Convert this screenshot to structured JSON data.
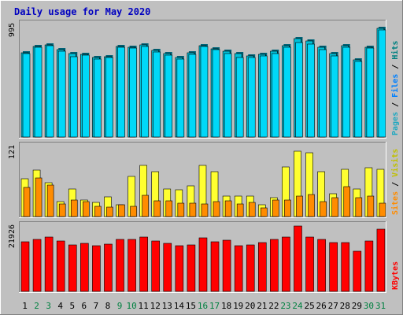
{
  "title": "Daily usage for May 2020",
  "colors": {
    "hits": "#00c0d8",
    "hits_dark": "#006478",
    "files": "#00d8f8",
    "pages": "#20a8c0",
    "visits": "#ffff30",
    "sites": "#ff8c00",
    "kbytes": "#ff0000",
    "title": "#0000c0",
    "weekend_day": "#008040",
    "weekday": "#000000"
  },
  "chart_data": [
    {
      "type": "bar",
      "panel": "top",
      "ymax_label": "995",
      "ylabels": [
        {
          "text": "Pages",
          "color": "#20a8c0"
        },
        {
          "text": " / ",
          "color": "#000000"
        },
        {
          "text": "Files",
          "color": "#0080ff"
        },
        {
          "text": " / ",
          "color": "#000000"
        },
        {
          "text": "Hits",
          "color": "#008080"
        }
      ],
      "ylim": [
        0,
        995
      ],
      "categories": [
        "1",
        "2",
        "3",
        "4",
        "5",
        "6",
        "7",
        "8",
        "9",
        "10",
        "11",
        "12",
        "13",
        "14",
        "15",
        "16",
        "17",
        "18",
        "19",
        "20",
        "21",
        "22",
        "23",
        "24",
        "25",
        "26",
        "27",
        "28",
        "29",
        "30",
        "31"
      ],
      "series": [
        {
          "name": "Hits",
          "values": [
            745,
            800,
            815,
            770,
            740,
            730,
            700,
            710,
            800,
            790,
            815,
            765,
            735,
            700,
            745,
            810,
            780,
            760,
            740,
            720,
            730,
            755,
            810,
            870,
            850,
            790,
            740,
            805,
            680,
            795,
            960
          ]
        },
        {
          "name": "Files",
          "values": [
            735,
            790,
            805,
            760,
            710,
            725,
            690,
            705,
            795,
            785,
            800,
            750,
            725,
            690,
            730,
            800,
            770,
            740,
            705,
            700,
            720,
            740,
            795,
            835,
            820,
            775,
            720,
            795,
            670,
            785,
            945
          ]
        }
      ]
    },
    {
      "type": "bar",
      "panel": "middle",
      "ymax_label": "121",
      "ylabels": [
        {
          "text": "Sites",
          "color": "#ff8c00"
        },
        {
          "text": " / ",
          "color": "#000000"
        },
        {
          "text": "Visits",
          "color": "#c0c000"
        }
      ],
      "ylim": [
        0,
        121
      ],
      "categories": [
        "1",
        "2",
        "3",
        "4",
        "5",
        "6",
        "7",
        "8",
        "9",
        "10",
        "11",
        "12",
        "13",
        "14",
        "15",
        "16",
        "17",
        "18",
        "19",
        "20",
        "21",
        "22",
        "23",
        "24",
        "25",
        "26",
        "27",
        "28",
        "29",
        "30",
        "31"
      ],
      "series": [
        {
          "name": "Visits",
          "values": [
            65,
            80,
            58,
            26,
            47,
            28,
            25,
            34,
            20,
            70,
            88,
            78,
            48,
            46,
            53,
            89,
            77,
            36,
            36,
            35,
            20,
            32,
            86,
            113,
            110,
            77,
            40,
            81,
            47,
            84,
            81
          ]
        },
        {
          "name": "Sites",
          "values": [
            50,
            67,
            54,
            22,
            28,
            26,
            18,
            16,
            21,
            17,
            37,
            27,
            27,
            23,
            23,
            22,
            26,
            27,
            22,
            25,
            15,
            28,
            28,
            36,
            38,
            26,
            32,
            52,
            32,
            36,
            23
          ]
        }
      ]
    },
    {
      "type": "bar",
      "panel": "bottom",
      "ymax_label": "21926",
      "ylabels": [
        {
          "text": "KBytes",
          "color": "#ff0000"
        }
      ],
      "ylim": [
        0,
        21926
      ],
      "categories": [
        "1",
        "2",
        "3",
        "4",
        "5",
        "6",
        "7",
        "8",
        "9",
        "10",
        "11",
        "12",
        "13",
        "14",
        "15",
        "16",
        "17",
        "18",
        "19",
        "20",
        "21",
        "22",
        "23",
        "24",
        "25",
        "26",
        "27",
        "28",
        "29",
        "30",
        "31"
      ],
      "series": [
        {
          "name": "KBytes",
          "values": [
            16600,
            17400,
            18200,
            16800,
            15600,
            16000,
            15400,
            15900,
            17400,
            17400,
            18300,
            16800,
            16200,
            15300,
            15700,
            18000,
            16700,
            17200,
            15400,
            15500,
            16400,
            17500,
            18100,
            21800,
            18300,
            17500,
            16400,
            16300,
            13500,
            16800,
            20800
          ]
        }
      ]
    }
  ],
  "xaxis": {
    "labels": [
      "1",
      "2",
      "3",
      "4",
      "5",
      "6",
      "7",
      "8",
      "9",
      "10",
      "11",
      "12",
      "13",
      "14",
      "15",
      "16",
      "17",
      "18",
      "19",
      "20",
      "21",
      "22",
      "23",
      "24",
      "25",
      "26",
      "27",
      "28",
      "29",
      "30",
      "31"
    ],
    "weekend_days": [
      "2",
      "3",
      "9",
      "10",
      "16",
      "17",
      "23",
      "24",
      "30",
      "31"
    ]
  }
}
